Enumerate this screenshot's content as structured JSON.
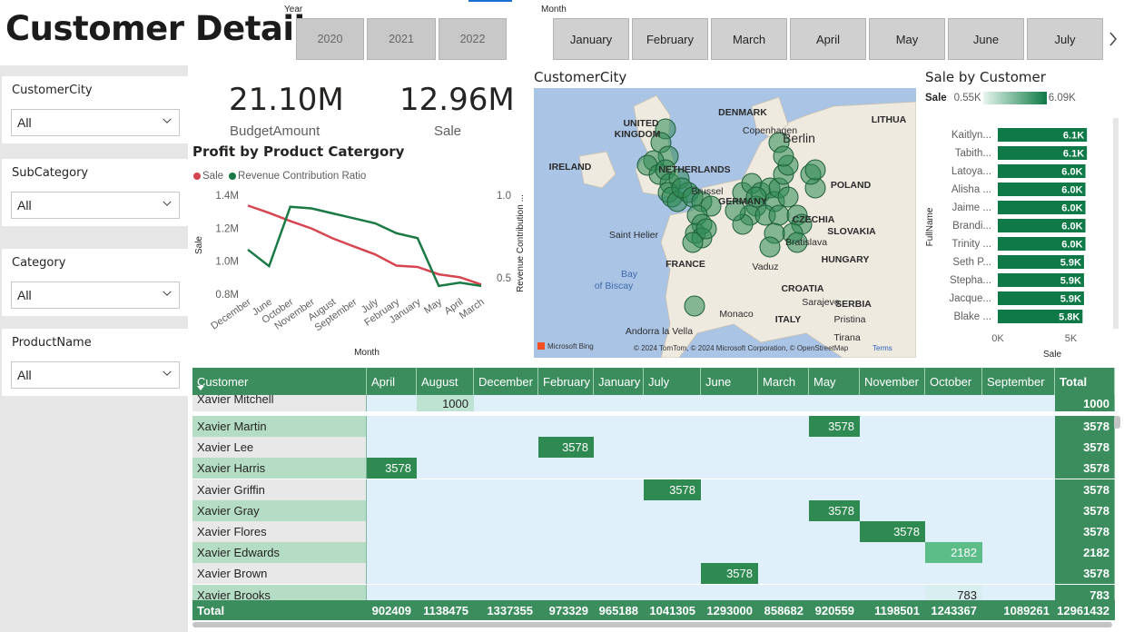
{
  "header": {
    "title": "Customer Details",
    "year_label": "Year",
    "years": [
      "2020",
      "2021",
      "2022"
    ],
    "month_label": "Month",
    "months": [
      "January",
      "February",
      "March",
      "April",
      "May",
      "June",
      "July"
    ],
    "next_icon": "chevron-right-icon"
  },
  "filters": [
    {
      "label": "CustomerCity",
      "value": "All"
    },
    {
      "label": "SubCategory",
      "value": "All"
    },
    {
      "label": "Category",
      "value": "All"
    },
    {
      "label": "ProductName",
      "value": "All"
    }
  ],
  "kpis": [
    {
      "value": "21.10M",
      "label": "BudgetAmount"
    },
    {
      "value": "12.96M",
      "label": "Sale"
    }
  ],
  "line_chart": {
    "title": "Profit by Product Catergory",
    "legend": [
      {
        "name": "Sale",
        "color": "#d64550"
      },
      {
        "name": "Revenue Contribution Ratio",
        "color": "#1a7a45"
      }
    ],
    "y_label": "Sale",
    "y2_label": "Revenue Contribution ...",
    "x_label": "Month",
    "y_ticks": [
      "1.4M",
      "1.2M",
      "1.0M",
      "0.8M"
    ],
    "y2_ticks": [
      "1.0",
      "0.5"
    ]
  },
  "map": {
    "title": "CustomerCity",
    "labels": [
      "UNITED",
      "KINGDOM",
      "IRELAND",
      "DENMARK",
      "Copenhagen",
      "LITHUA",
      "NETHERLANDS",
      "POLAND",
      "Berlin",
      "Brussel",
      "GERMANY",
      "CZECHIA",
      "SLOVAKIA",
      "Saint Helier",
      "Bratislava",
      "HUNGARY",
      "FRANCE",
      "Vaduz",
      "Bay",
      "of Biscay",
      "CROATIA",
      "Sarajevo",
      "SERBIA",
      "Monaco",
      "ITALY",
      "Pristina",
      "Andorra la Vella",
      "Tirana"
    ],
    "attribution": "© 2024 TomTom, © 2024 Microsoft Corporation, © OpenStreetMap",
    "terms": "Terms",
    "bing": "Microsoft Bing"
  },
  "bar_chart": {
    "title": "Sale by Customer",
    "legend_label": "Sale",
    "legend_min": "0.55K",
    "legend_max": "6.09K",
    "y_axis_label": "FullName",
    "x_axis_label": "Sale",
    "x_ticks": [
      "0K",
      "5K"
    ]
  },
  "chart_data": {
    "type": "bar",
    "title": "Sale by Customer",
    "xlabel": "Sale",
    "ylabel": "FullName",
    "categories": [
      "Kaitlyn...",
      "Tabith...",
      "Latoya...",
      "Alisha ...",
      "Jaime ...",
      "Brandi...",
      "Trinity ...",
      "Seth P...",
      "Stepha...",
      "Jacque...",
      "Blake ..."
    ],
    "values": [
      6.1,
      6.1,
      6.0,
      6.0,
      6.0,
      6.0,
      6.0,
      5.9,
      5.9,
      5.9,
      5.8
    ],
    "value_labels": [
      "6.1K",
      "6.1K",
      "6.0K",
      "6.0K",
      "6.0K",
      "6.0K",
      "6.0K",
      "5.9K",
      "5.9K",
      "5.9K",
      "5.8K"
    ],
    "xlim": [
      0,
      6.09
    ],
    "line": {
      "type": "line",
      "title": "Profit by Product Catergory",
      "xlabel": "Month",
      "ylabel": "Sale",
      "y2label": "Revenue Contribution ...",
      "categories": [
        "December",
        "June",
        "October",
        "November",
        "August",
        "September",
        "July",
        "February",
        "January",
        "May",
        "April",
        "March"
      ],
      "series": [
        {
          "name": "Sale",
          "axis": "left",
          "values": [
            1337355,
            1293000,
            1243367,
            1198501,
            1138475,
            1089261,
            1041305,
            973329,
            965188,
            920559,
            902409,
            858682
          ]
        },
        {
          "name": "Revenue Contribution Ratio",
          "axis": "right",
          "values": [
            0.67,
            0.57,
            0.93,
            0.92,
            0.89,
            0.86,
            0.83,
            0.77,
            0.74,
            0.45,
            0.47,
            0.45
          ]
        }
      ],
      "ylim": [
        0.8,
        1.4
      ],
      "y2lim": [
        0.4,
        1.0
      ]
    }
  },
  "matrix": {
    "columns": [
      "Customer",
      "April",
      "August",
      "December",
      "February",
      "January",
      "July",
      "June",
      "March",
      "May",
      "November",
      "October",
      "September",
      "Total"
    ],
    "rows": [
      {
        "name": "Xavier Mitchell",
        "col": "August",
        "value": "1000",
        "total": "1000"
      },
      {
        "name": "Xavier Martin",
        "col": "May",
        "value": "3578",
        "total": "3578"
      },
      {
        "name": "Xavier Lee",
        "col": "February",
        "value": "3578",
        "total": "3578"
      },
      {
        "name": "Xavier Harris",
        "col": "April",
        "value": "3578",
        "total": "3578"
      },
      {
        "name": "Xavier Griffin",
        "col": "July",
        "value": "3578",
        "total": "3578"
      },
      {
        "name": "Xavier Gray",
        "col": "May",
        "value": "3578",
        "total": "3578"
      },
      {
        "name": "Xavier Flores",
        "col": "November",
        "value": "3578",
        "total": "3578"
      },
      {
        "name": "Xavier Edwards",
        "col": "October",
        "value": "2182",
        "total": "2182"
      },
      {
        "name": "Xavier Brown",
        "col": "June",
        "value": "3578",
        "total": "3578"
      },
      {
        "name": "Xavier Brooks",
        "col": "October",
        "value": "783",
        "total": "783"
      }
    ],
    "totals": [
      "Total",
      "902409",
      "1138475",
      "1337355",
      "973329",
      "965188",
      "1041305",
      "1293000",
      "858682",
      "920559",
      "1198501",
      "1243367",
      "1089261",
      "12961432"
    ]
  }
}
